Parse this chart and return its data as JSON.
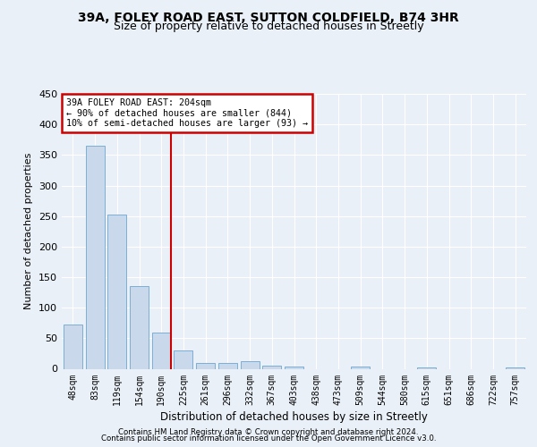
{
  "title_line1": "39A, FOLEY ROAD EAST, SUTTON COLDFIELD, B74 3HR",
  "title_line2": "Size of property relative to detached houses in Streetly",
  "xlabel": "Distribution of detached houses by size in Streetly",
  "ylabel": "Number of detached properties",
  "bar_labels": [
    "48sqm",
    "83sqm",
    "119sqm",
    "154sqm",
    "190sqm",
    "225sqm",
    "261sqm",
    "296sqm",
    "332sqm",
    "367sqm",
    "403sqm",
    "438sqm",
    "473sqm",
    "509sqm",
    "544sqm",
    "580sqm",
    "615sqm",
    "651sqm",
    "686sqm",
    "722sqm",
    "757sqm"
  ],
  "bar_values": [
    73,
    365,
    252,
    135,
    59,
    30,
    10,
    10,
    12,
    5,
    4,
    0,
    0,
    4,
    0,
    0,
    2,
    0,
    0,
    0,
    2
  ],
  "bar_color": "#c9d9eb",
  "bar_edgecolor": "#7bafd4",
  "annotation_line1": "39A FOLEY ROAD EAST: 204sqm",
  "annotation_line2": "← 90% of detached houses are smaller (844)",
  "annotation_line3": "10% of semi-detached houses are larger (93) →",
  "annotation_box_color": "#ffffff",
  "annotation_box_edgecolor": "#cc0000",
  "vline_color": "#cc0000",
  "vline_x": 4.45,
  "ylim": [
    0,
    450
  ],
  "yticks": [
    0,
    50,
    100,
    150,
    200,
    250,
    300,
    350,
    400,
    450
  ],
  "footer_line1": "Contains HM Land Registry data © Crown copyright and database right 2024.",
  "footer_line2": "Contains public sector information licensed under the Open Government Licence v3.0.",
  "background_color": "#eaf0f8",
  "plot_bg_color": "#eaf0f8",
  "grid_color": "#ffffff"
}
